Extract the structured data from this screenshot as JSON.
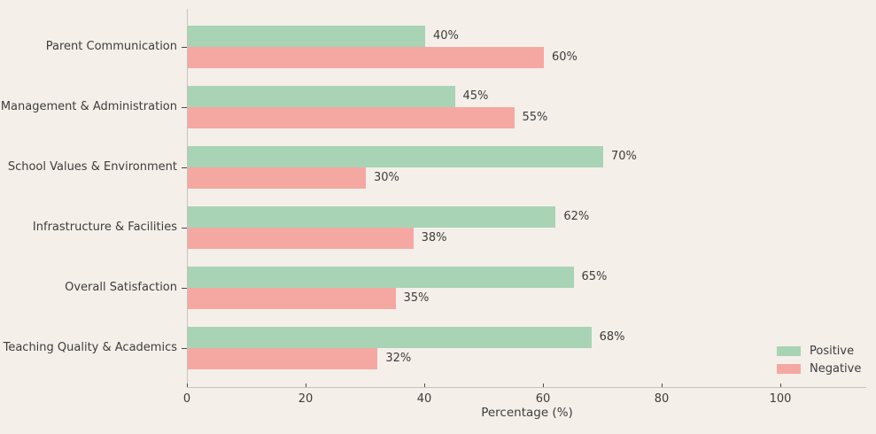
{
  "chart_data": {
    "type": "bar",
    "orientation": "horizontal",
    "categories": [
      "Parent Communication",
      "Management & Administration",
      "School Values & Environment",
      "Infrastructure & Facilities",
      "Overall Satisfaction",
      "Teaching Quality & Academics"
    ],
    "series": [
      {
        "name": "Positive",
        "color": "#a8d3b5",
        "values": [
          40,
          45,
          70,
          62,
          65,
          68
        ]
      },
      {
        "name": "Negative",
        "color": "#f5a8a2",
        "values": [
          60,
          55,
          30,
          38,
          35,
          32
        ]
      }
    ],
    "value_suffix": "%",
    "xlabel": "Percentage (%)",
    "x_ticks": [
      0,
      20,
      40,
      60,
      80,
      100
    ],
    "xlim": [
      0,
      114.5
    ],
    "grid": false,
    "legend": {
      "position": "lower-right",
      "entries": [
        "Positive",
        "Negative"
      ]
    }
  },
  "colors": {
    "background": "#f4efe9",
    "text": "#3d3d3d",
    "spine": "#c6c2bd"
  }
}
